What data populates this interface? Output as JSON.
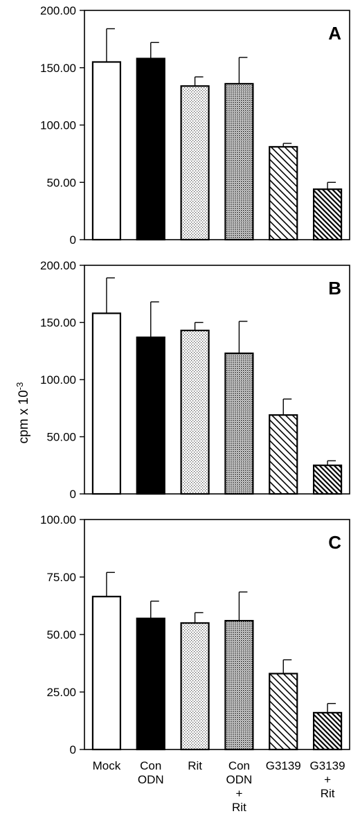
{
  "ylabel": "cpm x 10",
  "ylabel_exponent": "-3",
  "category_labels": [
    [
      "Mock"
    ],
    [
      "Con",
      "ODN"
    ],
    [
      "Rit"
    ],
    [
      "Con",
      "ODN",
      "+",
      "Rit"
    ],
    [
      "G3139"
    ],
    [
      "G3139",
      "+",
      "Rit"
    ]
  ],
  "bar_fills": [
    "open",
    "solid",
    "fine-dots",
    "dense-dots",
    "diagonal-hatch",
    "dense-diagonal-hatch"
  ],
  "chart_data": [
    {
      "type": "bar",
      "panel": "A",
      "categories": [
        "Mock",
        "Con ODN",
        "Rit",
        "Con ODN + Rit",
        "G3139",
        "G3139 + Rit"
      ],
      "values": [
        155,
        158,
        134,
        136,
        81,
        44
      ],
      "error_upper": [
        29,
        14,
        8,
        23,
        3,
        6
      ],
      "ylim": [
        0,
        200
      ],
      "yticks": [
        "0",
        "50.00",
        "100.00",
        "150.00",
        "200.00"
      ],
      "grid": false
    },
    {
      "type": "bar",
      "panel": "B",
      "categories": [
        "Mock",
        "Con ODN",
        "Rit",
        "Con ODN + Rit",
        "G3139",
        "G3139 + Rit"
      ],
      "values": [
        158,
        137,
        143,
        123,
        69,
        25
      ],
      "error_upper": [
        31,
        31,
        7,
        28,
        14,
        4
      ],
      "ylim": [
        0,
        200
      ],
      "yticks": [
        "0",
        "50.00",
        "100.00",
        "150.00",
        "200.00"
      ],
      "grid": false
    },
    {
      "type": "bar",
      "panel": "C",
      "categories": [
        "Mock",
        "Con ODN",
        "Rit",
        "Con ODN + Rit",
        "G3139",
        "G3139 + Rit"
      ],
      "values": [
        66.5,
        57,
        55,
        56,
        33,
        16
      ],
      "error_upper": [
        10.5,
        7.5,
        4.5,
        12.5,
        6,
        4
      ],
      "ylim": [
        0,
        100
      ],
      "yticks": [
        "0",
        "25.00",
        "50.00",
        "75.00",
        "100.00"
      ],
      "grid": false
    }
  ]
}
